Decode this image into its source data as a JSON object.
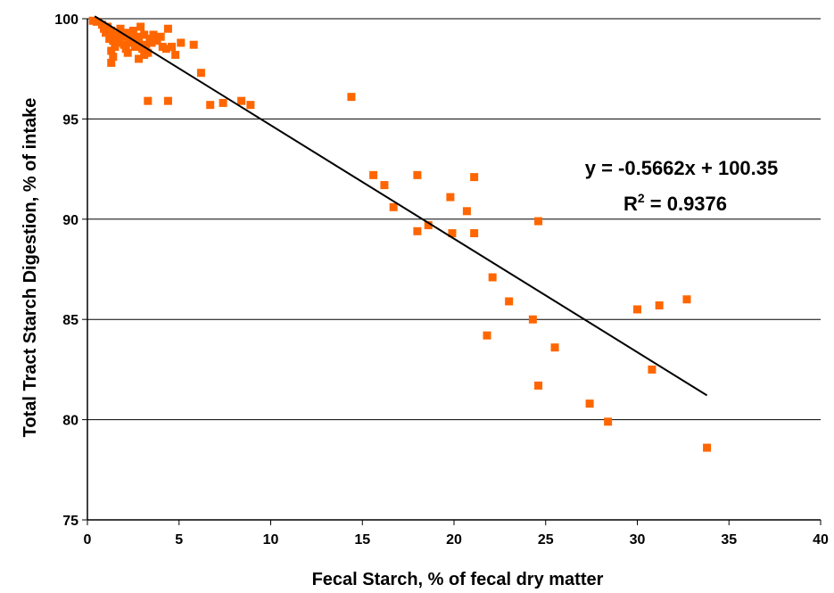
{
  "chart_data": {
    "type": "scatter",
    "xlabel": "Fecal Starch, % of fecal dry matter",
    "ylabel": "Total Tract Starch Digestion, % of intake",
    "xlim": [
      0,
      40
    ],
    "ylim": [
      75,
      100
    ],
    "x_ticks": [
      "0",
      "5",
      "10",
      "15",
      "20",
      "25",
      "30",
      "35",
      "40"
    ],
    "y_ticks": [
      "75",
      "80",
      "85",
      "90",
      "95",
      "100"
    ],
    "grid": "horizontal",
    "legend": "none",
    "colors": {
      "points": "#FF6600",
      "trendline": "#000000",
      "grid": "#000000"
    },
    "trendline": {
      "slope": -0.5662,
      "intercept": 100.35,
      "x_range": [
        0.4,
        33.8
      ]
    },
    "equation": "y = -0.5662x + 100.35",
    "r2_prefix": "R",
    "r2_sup": "2",
    "r2_suffix": " = 0.9376",
    "points": [
      [
        0.3,
        99.9
      ],
      [
        0.5,
        99.85
      ],
      [
        0.8,
        99.7
      ],
      [
        0.9,
        99.5
      ],
      [
        1.0,
        99.3
      ],
      [
        1.1,
        99.6
      ],
      [
        1.2,
        99.0
      ],
      [
        1.3,
        99.4
      ],
      [
        1.4,
        98.9
      ],
      [
        1.5,
        98.6
      ],
      [
        1.6,
        99.2
      ],
      [
        1.7,
        98.8
      ],
      [
        1.8,
        99.5
      ],
      [
        1.9,
        99.1
      ],
      [
        2.0,
        98.7
      ],
      [
        2.1,
        98.5
      ],
      [
        2.2,
        99.3
      ],
      [
        2.3,
        99.0
      ],
      [
        2.4,
        98.8
      ],
      [
        2.5,
        99.4
      ],
      [
        2.6,
        98.6
      ],
      [
        2.7,
        99.1
      ],
      [
        2.8,
        98.9
      ],
      [
        2.9,
        99.6
      ],
      [
        3.0,
        98.5
      ],
      [
        3.1,
        99.2
      ],
      [
        3.2,
        98.7
      ],
      [
        3.3,
        98.3
      ],
      [
        3.4,
        99.0
      ],
      [
        3.5,
        98.8
      ],
      [
        3.6,
        99.2
      ],
      [
        3.8,
        98.9
      ],
      [
        4.0,
        99.1
      ],
      [
        4.1,
        98.6
      ],
      [
        4.3,
        98.5
      ],
      [
        4.4,
        99.5
      ],
      [
        4.6,
        98.6
      ],
      [
        1.3,
        98.4
      ],
      [
        1.4,
        98.1
      ],
      [
        1.3,
        97.8
      ],
      [
        1.5,
        98.9
      ],
      [
        2.2,
        98.3
      ],
      [
        2.8,
        98.0
      ],
      [
        3.1,
        98.2
      ],
      [
        4.8,
        98.2
      ],
      [
        5.1,
        98.8
      ],
      [
        5.8,
        98.7
      ],
      [
        6.2,
        97.3
      ],
      [
        3.3,
        95.9
      ],
      [
        4.4,
        95.9
      ],
      [
        6.7,
        95.7
      ],
      [
        7.4,
        95.8
      ],
      [
        8.4,
        95.9
      ],
      [
        8.9,
        95.7
      ],
      [
        14.4,
        96.1
      ],
      [
        15.6,
        92.2
      ],
      [
        16.2,
        91.7
      ],
      [
        16.7,
        90.6
      ],
      [
        18.0,
        92.2
      ],
      [
        18.0,
        89.4
      ],
      [
        18.6,
        89.7
      ],
      [
        19.8,
        91.1
      ],
      [
        19.9,
        89.3
      ],
      [
        20.7,
        90.4
      ],
      [
        21.1,
        92.1
      ],
      [
        21.1,
        89.3
      ],
      [
        22.1,
        87.1
      ],
      [
        23.0,
        85.9
      ],
      [
        21.8,
        84.2
      ],
      [
        24.3,
        85.0
      ],
      [
        24.6,
        89.9
      ],
      [
        24.6,
        81.7
      ],
      [
        25.5,
        83.6
      ],
      [
        27.4,
        80.8
      ],
      [
        28.4,
        79.9
      ],
      [
        30.0,
        85.5
      ],
      [
        30.8,
        82.5
      ],
      [
        31.2,
        85.7
      ],
      [
        32.7,
        86.0
      ],
      [
        33.8,
        78.6
      ]
    ]
  }
}
